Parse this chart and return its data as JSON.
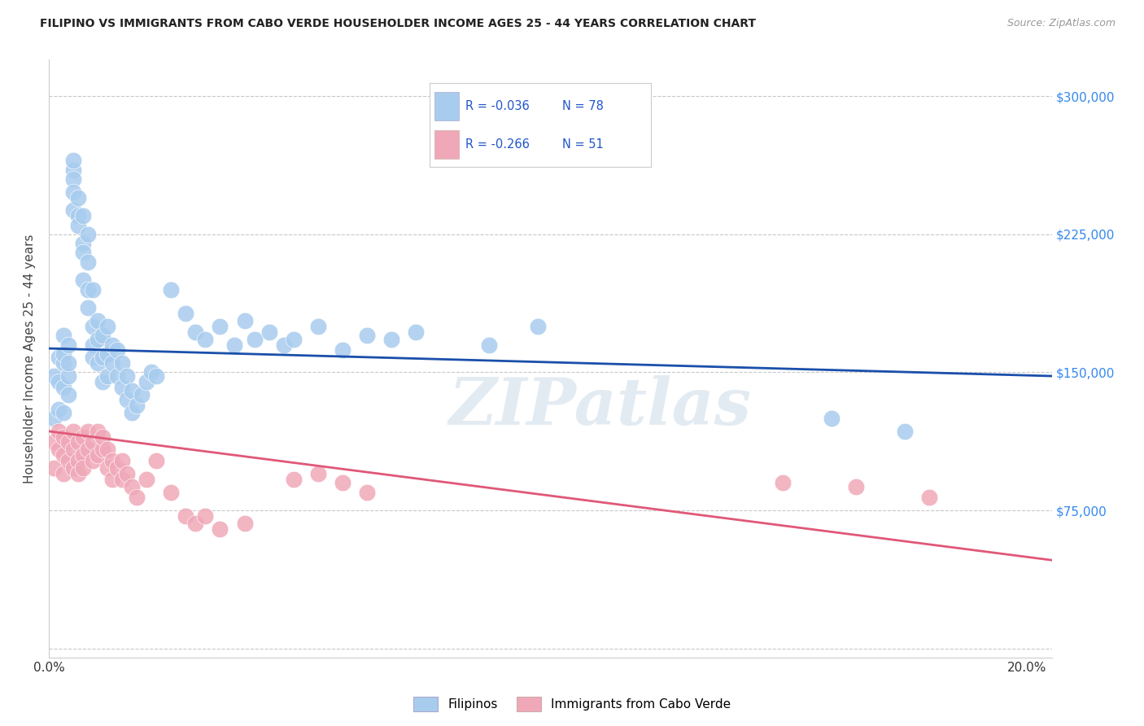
{
  "title": "FILIPINO VS IMMIGRANTS FROM CABO VERDE HOUSEHOLDER INCOME AGES 25 - 44 YEARS CORRELATION CHART",
  "source": "Source: ZipAtlas.com",
  "ylabel": "Householder Income Ages 25 - 44 years",
  "xlim": [
    0.0,
    0.205
  ],
  "ylim": [
    -5000,
    320000
  ],
  "yticks": [
    0,
    75000,
    150000,
    225000,
    300000
  ],
  "ytick_labels": [
    "",
    "$75,000",
    "$150,000",
    "$225,000",
    "$300,000"
  ],
  "xticks": [
    0.0,
    0.05,
    0.1,
    0.15,
    0.2
  ],
  "xtick_labels": [
    "0.0%",
    "",
    "",
    "",
    "20.0%"
  ],
  "grid_color": "#c8c8c8",
  "background_color": "#ffffff",
  "watermark": "ZIPatlas",
  "series": [
    {
      "name": "Filipinos",
      "R": -0.036,
      "N": 78,
      "dot_color": "#a8ccee",
      "line_color": "#1a4faa",
      "line_style": "solid",
      "trend_x0": 0.0,
      "trend_y0": 163000,
      "trend_x1": 0.205,
      "trend_y1": 148000,
      "x": [
        0.001,
        0.001,
        0.002,
        0.002,
        0.002,
        0.003,
        0.003,
        0.003,
        0.003,
        0.003,
        0.004,
        0.004,
        0.004,
        0.004,
        0.005,
        0.005,
        0.005,
        0.005,
        0.005,
        0.006,
        0.006,
        0.006,
        0.007,
        0.007,
        0.007,
        0.007,
        0.008,
        0.008,
        0.008,
        0.008,
        0.009,
        0.009,
        0.009,
        0.009,
        0.01,
        0.01,
        0.01,
        0.011,
        0.011,
        0.011,
        0.012,
        0.012,
        0.012,
        0.013,
        0.013,
        0.014,
        0.014,
        0.015,
        0.015,
        0.016,
        0.016,
        0.017,
        0.017,
        0.018,
        0.019,
        0.02,
        0.021,
        0.022,
        0.025,
        0.028,
        0.03,
        0.032,
        0.035,
        0.038,
        0.04,
        0.042,
        0.045,
        0.048,
        0.05,
        0.055,
        0.06,
        0.065,
        0.07,
        0.075,
        0.09,
        0.1,
        0.16,
        0.175
      ],
      "y": [
        125000,
        148000,
        145000,
        130000,
        158000,
        155000,
        170000,
        142000,
        128000,
        160000,
        148000,
        165000,
        138000,
        155000,
        260000,
        265000,
        255000,
        248000,
        238000,
        235000,
        245000,
        230000,
        220000,
        235000,
        215000,
        200000,
        210000,
        225000,
        195000,
        185000,
        195000,
        175000,
        165000,
        158000,
        155000,
        168000,
        178000,
        170000,
        158000,
        145000,
        148000,
        160000,
        175000,
        155000,
        165000,
        148000,
        162000,
        155000,
        142000,
        148000,
        135000,
        140000,
        128000,
        132000,
        138000,
        145000,
        150000,
        148000,
        195000,
        182000,
        172000,
        168000,
        175000,
        165000,
        178000,
        168000,
        172000,
        165000,
        168000,
        175000,
        162000,
        170000,
        168000,
        172000,
        165000,
        175000,
        125000,
        118000
      ]
    },
    {
      "name": "Immigrants from Cabo Verde",
      "R": -0.266,
      "N": 51,
      "dot_color": "#f0a8b8",
      "line_color": "#e05878",
      "line_style": "solid",
      "trend_x0": 0.0,
      "trend_y0": 118000,
      "trend_x1": 0.205,
      "trend_y1": 48000,
      "x": [
        0.001,
        0.001,
        0.002,
        0.002,
        0.003,
        0.003,
        0.003,
        0.004,
        0.004,
        0.005,
        0.005,
        0.005,
        0.006,
        0.006,
        0.006,
        0.007,
        0.007,
        0.007,
        0.008,
        0.008,
        0.009,
        0.009,
        0.01,
        0.01,
        0.011,
        0.011,
        0.012,
        0.012,
        0.013,
        0.013,
        0.014,
        0.015,
        0.015,
        0.016,
        0.017,
        0.018,
        0.02,
        0.022,
        0.025,
        0.028,
        0.03,
        0.032,
        0.035,
        0.04,
        0.05,
        0.055,
        0.06,
        0.065,
        0.15,
        0.165,
        0.18
      ],
      "y": [
        112000,
        98000,
        108000,
        118000,
        105000,
        95000,
        115000,
        112000,
        102000,
        108000,
        98000,
        118000,
        102000,
        112000,
        95000,
        105000,
        115000,
        98000,
        108000,
        118000,
        102000,
        112000,
        118000,
        105000,
        108000,
        115000,
        98000,
        108000,
        102000,
        92000,
        98000,
        92000,
        102000,
        95000,
        88000,
        82000,
        92000,
        102000,
        85000,
        72000,
        68000,
        72000,
        65000,
        68000,
        92000,
        95000,
        90000,
        85000,
        90000,
        88000,
        82000
      ]
    }
  ]
}
